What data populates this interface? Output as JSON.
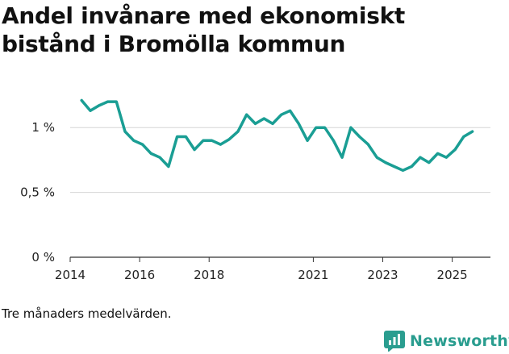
{
  "title_lines": [
    "Andel invånare med ekonomiskt",
    "bistånd i Bromölla kommun"
  ],
  "note": "Tre månaders medelvärden.",
  "brand": {
    "name": "Newsworthy",
    "color": "#2a9d8f"
  },
  "chart_data": {
    "type": "line",
    "title": "Andel invånare med ekonomiskt bistånd i Bromölla kommun",
    "xlabel": "",
    "ylabel": "",
    "xlim": [
      2014,
      2026.1
    ],
    "ylim": [
      0,
      1.3
    ],
    "yticks": [
      0,
      0.5,
      1
    ],
    "ytick_labels": [
      "0 %",
      "0,5 %",
      "1 %"
    ],
    "xticks": [
      2014,
      2016,
      2018,
      2021,
      2023,
      2025
    ],
    "xtick_labels": [
      "2014",
      "2016",
      "2018",
      "2021",
      "2023",
      "2025"
    ],
    "grid": true,
    "series": [
      {
        "name": "Andel invånare med ekonomiskt bistånd",
        "color": "#1a9e94",
        "x": [
          2014.33,
          2014.58,
          2014.83,
          2015.08,
          2015.33,
          2015.58,
          2015.83,
          2016.08,
          2016.33,
          2016.58,
          2016.83,
          2017.08,
          2017.33,
          2017.58,
          2017.83,
          2018.08,
          2018.33,
          2018.58,
          2018.83,
          2019.08,
          2019.33,
          2019.58,
          2019.83,
          2020.08,
          2020.33,
          2020.58,
          2020.83,
          2021.08,
          2021.33,
          2021.58,
          2021.83,
          2022.08,
          2022.33,
          2022.58,
          2022.83,
          2023.08,
          2023.33,
          2023.58,
          2023.83,
          2024.08,
          2024.33,
          2024.58,
          2024.83,
          2025.08,
          2025.33,
          2025.58
        ],
        "values": [
          1.21,
          1.13,
          1.17,
          1.2,
          1.2,
          0.97,
          0.9,
          0.87,
          0.8,
          0.77,
          0.7,
          0.93,
          0.93,
          0.83,
          0.9,
          0.9,
          0.87,
          0.91,
          0.97,
          1.1,
          1.03,
          1.07,
          1.03,
          1.1,
          1.13,
          1.03,
          0.9,
          1.0,
          1.0,
          0.9,
          0.77,
          1.0,
          0.93,
          0.87,
          0.77,
          0.73,
          0.7,
          0.67,
          0.7,
          0.77,
          0.73,
          0.8,
          0.77,
          0.83,
          0.93,
          0.97
        ]
      }
    ]
  }
}
